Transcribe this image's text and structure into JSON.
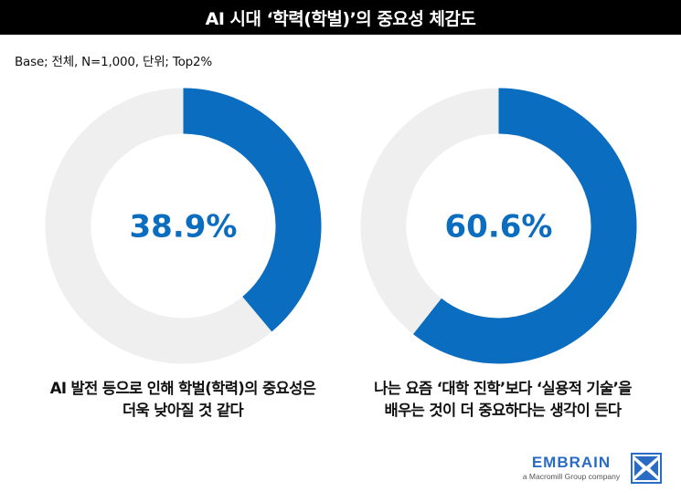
{
  "title": "AI 시대 ‘학력(학벌)’의 중요성 체감도",
  "base_note": "Base; 전체, N=1,000, 단위; Top2%",
  "colors": {
    "accent": "#0b6dc0",
    "track": "#efefef",
    "title_bg": "#000000"
  },
  "chart_data": [
    {
      "type": "pie",
      "value": 38.9,
      "label": "38.9%",
      "caption_lines": [
        "AI 발전 등으로 인해 학벌(학력)의 중요성은",
        "더욱 낮아질 것 같다"
      ]
    },
    {
      "type": "pie",
      "value": 60.6,
      "label": "60.6%",
      "caption_lines": [
        "나는 요즘 ‘대학 진학’보다 ‘실용적 기술’을",
        "배우는 것이 더 중요하다는 생각이 든다"
      ]
    }
  ],
  "brand": {
    "name": "EMBRAIN",
    "sub": "a Macromill Group company",
    "logo_icon": "embrain-logo-icon"
  }
}
